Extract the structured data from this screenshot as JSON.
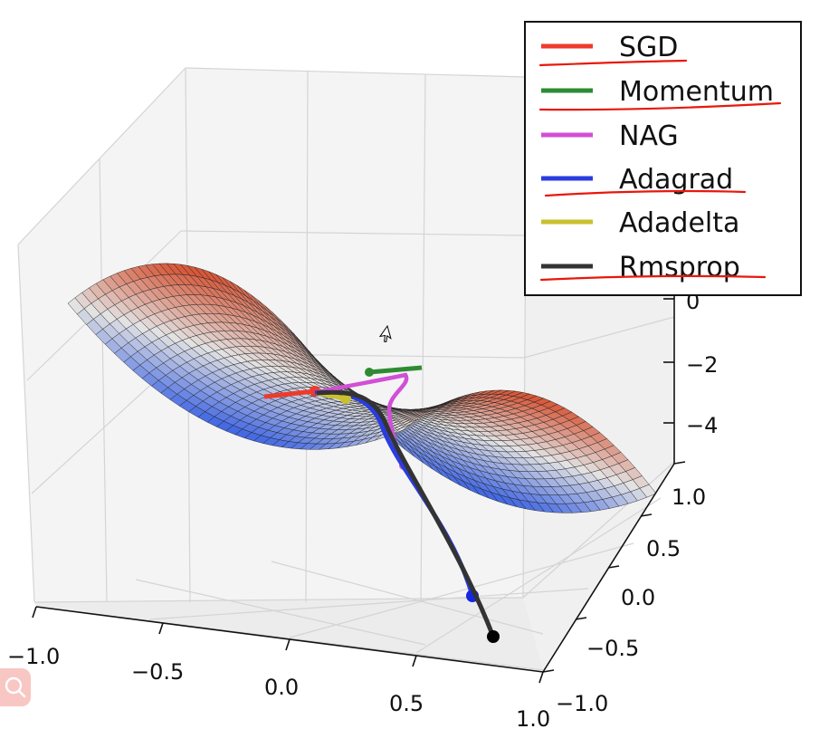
{
  "chart_data": {
    "type": "surface3d",
    "title": "",
    "surface": "saddle z = x^2 - y^2",
    "x_ticks": [
      "−1.0",
      "−0.5",
      "0.0",
      "0.5",
      "1.0"
    ],
    "y_ticks": [
      "−1.0",
      "−0.5",
      "0.0",
      "0.5",
      "1.0"
    ],
    "z_ticks": [
      "−4",
      "−2",
      "0"
    ],
    "xlim": [
      -1.0,
      1.0
    ],
    "ylim": [
      -1.0,
      1.0
    ],
    "series": [
      {
        "name": "SGD",
        "color": "#ee3b2b"
      },
      {
        "name": "Momentum",
        "color": "#2e8b32"
      },
      {
        "name": "NAG",
        "color": "#d24fd6"
      },
      {
        "name": "Adagrad",
        "color": "#2a3cdf"
      },
      {
        "name": "Adadelta",
        "color": "#c9c02e"
      },
      {
        "name": "Rmsprop",
        "color": "#333333"
      }
    ],
    "annotation_color": "#e8180c"
  }
}
